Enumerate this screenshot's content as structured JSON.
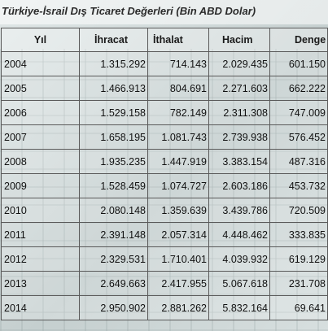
{
  "title": "Türkiye-İsrail Dış Ticaret Değerleri (Bin ABD Dolar)",
  "table": {
    "headers": [
      "Yıl",
      "İhracat",
      "İthalat",
      "Hacim",
      "Denge"
    ],
    "rows": [
      [
        "2004",
        "1.315.292",
        "714.143",
        "2.029.435",
        "601.150"
      ],
      [
        "2005",
        "1.466.913",
        "804.691",
        "2.271.603",
        "662.222"
      ],
      [
        "2006",
        "1.529.158",
        "782.149",
        "2.311.308",
        "747.009"
      ],
      [
        "2007",
        "1.658.195",
        "1.081.743",
        "2.739.938",
        "576.452"
      ],
      [
        "2008",
        "1.935.235",
        "1.447.919",
        "3.383.154",
        "487.316"
      ],
      [
        "2009",
        "1.528.459",
        "1.074.727",
        "2.603.186",
        "453.732"
      ],
      [
        "2010",
        "2.080.148",
        "1.359.639",
        "3.439.786",
        "720.509"
      ],
      [
        "2011",
        "2.391.148",
        "2.057.314",
        "4.448.462",
        "333.835"
      ],
      [
        "2012",
        "2.329.531",
        "1.710.401",
        "4.039.932",
        "619.129"
      ],
      [
        "2013",
        "2.649.663",
        "2.417.955",
        "5.067.618",
        "231.708"
      ],
      [
        "2014",
        "2.950.902",
        "2.881.262",
        "5.832.164",
        "69.641"
      ]
    ]
  }
}
